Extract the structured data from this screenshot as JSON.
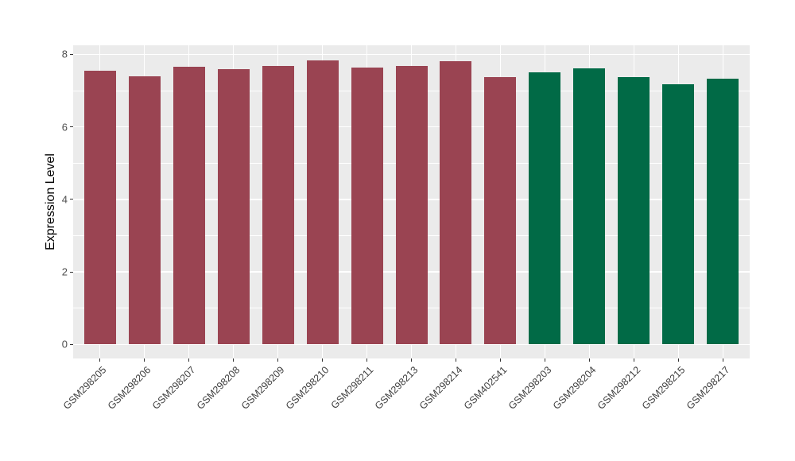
{
  "chart_data": {
    "type": "bar",
    "title": "",
    "xlabel": "",
    "ylabel": "Expression Level",
    "categories": [
      "GSM298205",
      "GSM298206",
      "GSM298207",
      "GSM298208",
      "GSM298209",
      "GSM298210",
      "GSM298211",
      "GSM298213",
      "GSM298214",
      "GSM402541",
      "GSM298203",
      "GSM298204",
      "GSM298212",
      "GSM298215",
      "GSM298217"
    ],
    "values": [
      7.55,
      7.4,
      7.66,
      7.6,
      7.69,
      7.84,
      7.64,
      7.68,
      7.82,
      7.37,
      7.51,
      7.61,
      7.37,
      7.17,
      7.33
    ],
    "groups": [
      "group1",
      "group1",
      "group1",
      "group1",
      "group1",
      "group1",
      "group1",
      "group1",
      "group1",
      "group1",
      "group2",
      "group2",
      "group2",
      "group2",
      "group2"
    ],
    "group_colors": {
      "group1": "#9a4452",
      "group2": "#016a46"
    },
    "ylim": [
      0,
      8
    ],
    "yticks_major": [
      0,
      2,
      4,
      6,
      8
    ],
    "yticks_minor": [
      1,
      3,
      5,
      7
    ],
    "grid": true,
    "panel_background": "#ebebeb",
    "gridline_color": "#ffffff",
    "legend_position": "none"
  }
}
